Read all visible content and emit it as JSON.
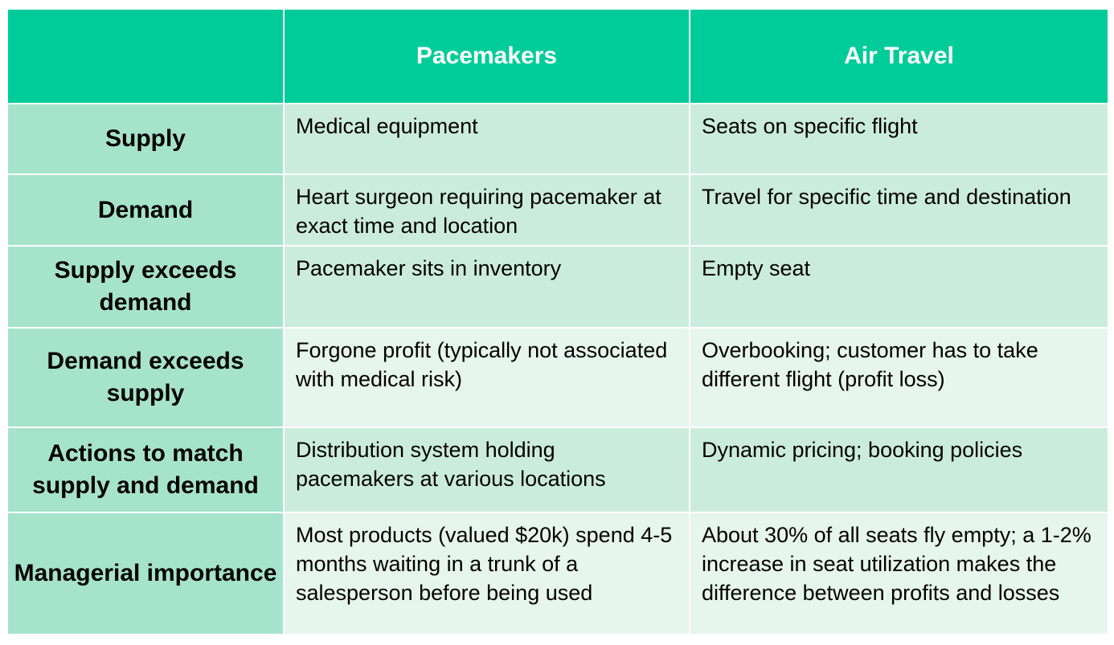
{
  "header": {
    "corner": "",
    "col1": "Pacemakers",
    "col2": "Air Travel"
  },
  "rows": [
    {
      "label": "Supply",
      "pacemakers": "Medical equipment",
      "air_travel": "Seats on specific flight"
    },
    {
      "label": "Demand",
      "pacemakers": "Heart surgeon requiring pacemaker at exact time and location",
      "air_travel": "Travel for specific time and destination"
    },
    {
      "label": "Supply exceeds demand",
      "pacemakers": "Pacemaker sits in inventory",
      "air_travel": "Empty seat"
    },
    {
      "label": "Demand exceeds supply",
      "pacemakers": "Forgone profit (typically not associated with medical risk)",
      "air_travel": "Overbooking; customer has to take different flight (profit loss)"
    },
    {
      "label": "Actions to match supply and demand",
      "pacemakers": "Distribution system holding pacemakers at various locations",
      "air_travel": "Dynamic pricing; booking policies"
    },
    {
      "label": "Managerial importance",
      "pacemakers": "Most products (valued $20k) spend 4-5 months waiting in a trunk of a salesperson before being used",
      "air_travel": "About 30% of all seats fly empty; a 1-2% increase in seat utilization makes the difference between profits and losses"
    }
  ],
  "colors": {
    "header_bg": "#00cc99",
    "row_label_bg": "#a6e3cb",
    "cell_bg_dark": "#cbecdc",
    "cell_bg_light": "#e6f5ee"
  }
}
